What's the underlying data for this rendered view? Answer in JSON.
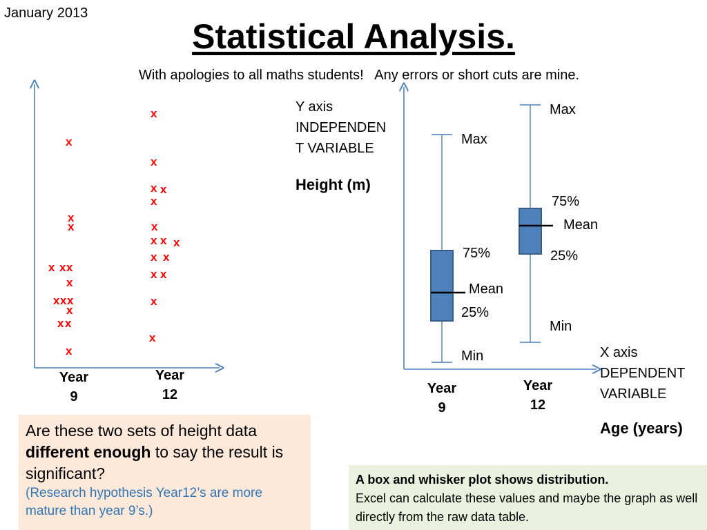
{
  "header": {
    "date": "January 2013",
    "title": "Statistical Analysis.",
    "subtitle": "With apologies to all maths students!   Any errors or short cuts are mine."
  },
  "y_axis_note": {
    "line1": "Y axis",
    "line2": "INDEPENDEN",
    "line3": "T VARIABLE",
    "quantity": "Height (m)"
  },
  "x_axis_note": {
    "line1": "X axis",
    "line2": "DEPENDENT",
    "line3": "VARIABLE",
    "quantity": "Age (years)"
  },
  "groups": {
    "year9": {
      "line1": "Year",
      "line2": "9"
    },
    "year12": {
      "line1": "Year",
      "line2": "12"
    }
  },
  "mark_symbol": "x",
  "box_labels": {
    "year9": {
      "max": "Max",
      "q3": "75%",
      "mean": "Mean",
      "q1": "25%",
      "min": "Min"
    },
    "year12": {
      "max": "Max",
      "q3": "75%",
      "mean": "Mean",
      "q1": "25%",
      "min": "Min"
    }
  },
  "question_box": {
    "text_a": "Are these two sets of height data ",
    "text_bold": "different enough",
    "text_b": " to say the result is significant?",
    "hypothesis": "(Research hypothesis Year12’s are more mature than year 9’s.)"
  },
  "info_box": {
    "bold": "A box and whisker plot  shows distribution.",
    "text": "Excel can calculate these values and maybe the graph as well directly from the raw data table."
  },
  "colors": {
    "mark": "#ff0000",
    "box_fill": "#4f81bd",
    "box_stroke": "#385d8a",
    "axis": "#4a7ebb",
    "question_bg": "#fde9d9",
    "info_bg": "#ebf1de",
    "hypothesis_text": "#2e75b6"
  }
}
